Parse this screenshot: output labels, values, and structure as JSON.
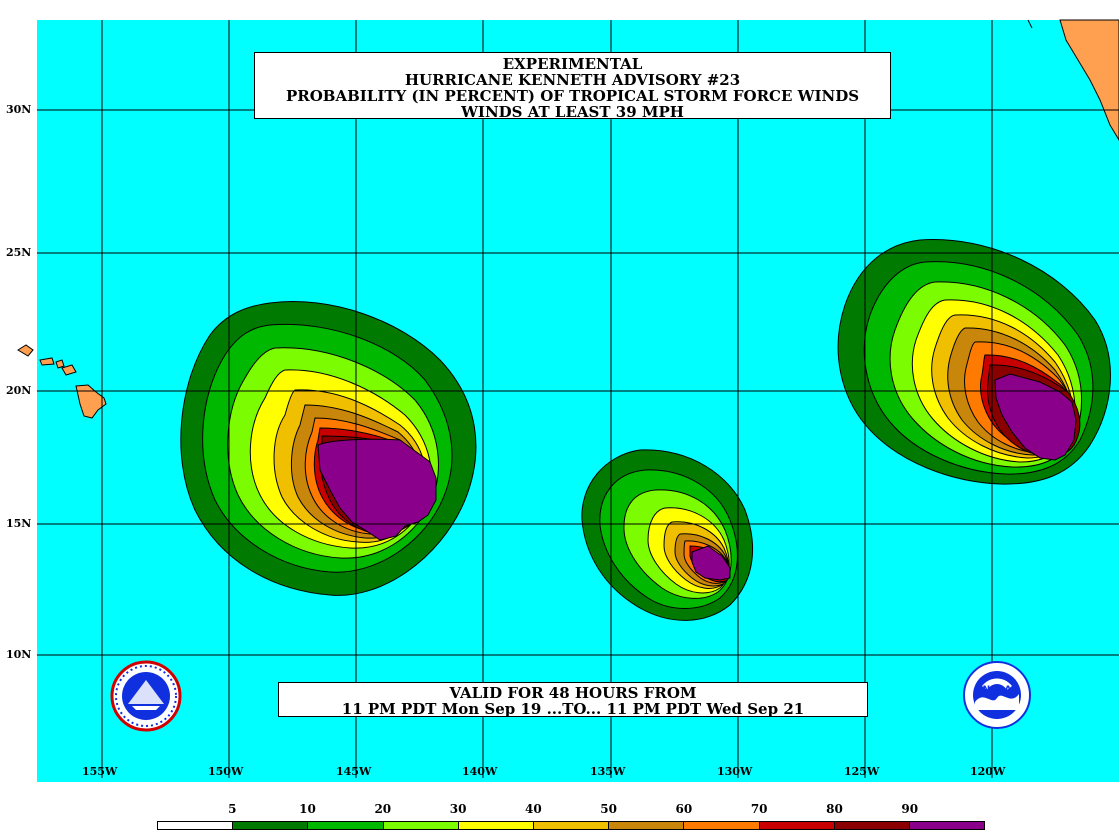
{
  "title": {
    "line1": "EXPERIMENTAL",
    "line2": "HURRICANE KENNETH ADVISORY #23",
    "line3": "PROBABILITY (IN PERCENT) OF TROPICAL STORM FORCE WINDS",
    "line4": "WINDS AT LEAST 39 MPH"
  },
  "valid": {
    "line1": "VALID FOR 48 HOURS FROM",
    "line2": "11 PM PDT Mon Sep 19 ...TO... 11 PM PDT Wed Sep 21"
  },
  "latitudes": [
    "30N",
    "25N",
    "20N",
    "15N",
    "10N"
  ],
  "longitudes": [
    "155W",
    "150W",
    "145W",
    "140W",
    "135W",
    "130W",
    "125W",
    "120W"
  ],
  "legend": {
    "labels": [
      "5",
      "10",
      "20",
      "30",
      "40",
      "50",
      "60",
      "70",
      "80",
      "90"
    ],
    "colors": [
      "#ffffff",
      "#007a00",
      "#00b800",
      "#7cfc00",
      "#ffff00",
      "#f0c000",
      "#c8860a",
      "#ff7a00",
      "#c80000",
      "#8a0000",
      "#8b008b"
    ]
  },
  "colors": {
    "ocean": "#00ffff",
    "land": "#ffa050",
    "grid": "#000000"
  },
  "logos": {
    "left": "nws-logo",
    "right": "noaa-logo"
  }
}
